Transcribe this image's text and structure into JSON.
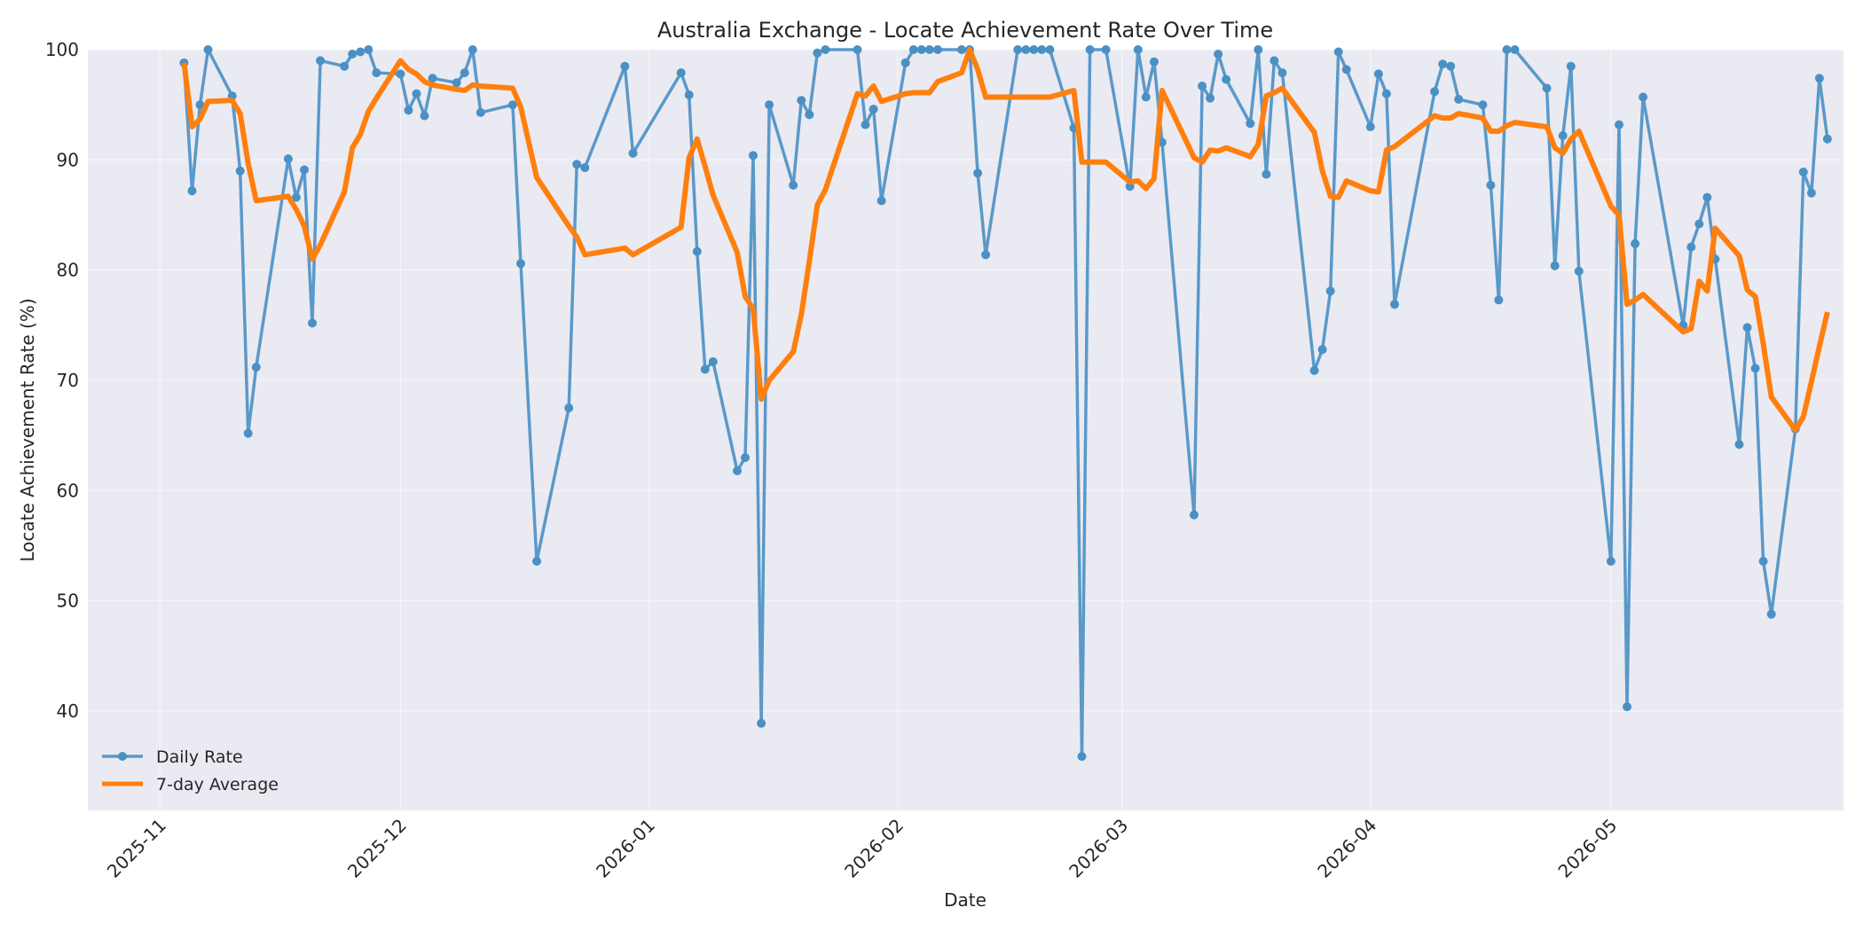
{
  "chart_data": {
    "type": "line",
    "title": "Australia Exchange - Locate Achievement Rate Over Time",
    "xlabel": "Date",
    "ylabel": "Locate Achievement Rate (%)",
    "xlim": [
      "2025-10-23",
      "2026-05-30"
    ],
    "ylim": [
      31,
      100
    ],
    "x_ticks": [
      "2025-11",
      "2025-12",
      "2026-01",
      "2026-02",
      "2026-03",
      "2026-04",
      "2026-05"
    ],
    "y_ticks": [
      40,
      50,
      60,
      70,
      80,
      90,
      100
    ],
    "grid": true,
    "legend": "lower-left",
    "series": [
      {
        "name": "Daily Rate",
        "style": "line-with-markers",
        "color": "#4a90c4",
        "points": [
          [
            "2025-11-04",
            98.8
          ],
          [
            "2025-11-05",
            87.2
          ],
          [
            "2025-11-06",
            95.0
          ],
          [
            "2025-11-07",
            100.0
          ],
          [
            "2025-11-10",
            95.8
          ],
          [
            "2025-11-11",
            89.0
          ],
          [
            "2025-11-12",
            65.2
          ],
          [
            "2025-11-13",
            71.2
          ],
          [
            "2025-11-17",
            90.1
          ],
          [
            "2025-11-18",
            86.6
          ],
          [
            "2025-11-19",
            89.1
          ],
          [
            "2025-11-20",
            75.2
          ],
          [
            "2025-11-21",
            99.0
          ],
          [
            "2025-11-24",
            98.5
          ],
          [
            "2025-11-25",
            99.6
          ],
          [
            "2025-11-26",
            99.8
          ],
          [
            "2025-11-27",
            100.0
          ],
          [
            "2025-11-28",
            97.9
          ],
          [
            "2025-12-01",
            97.8
          ],
          [
            "2025-12-02",
            94.5
          ],
          [
            "2025-12-03",
            96.0
          ],
          [
            "2025-12-04",
            94.0
          ],
          [
            "2025-12-05",
            97.4
          ],
          [
            "2025-12-08",
            97.0
          ],
          [
            "2025-12-09",
            97.9
          ],
          [
            "2025-12-10",
            100.0
          ],
          [
            "2025-12-11",
            94.3
          ],
          [
            "2025-12-15",
            95.0
          ],
          [
            "2025-12-16",
            80.6
          ],
          [
            "2025-12-18",
            53.6
          ],
          [
            "2025-12-22",
            67.5
          ],
          [
            "2025-12-23",
            89.6
          ],
          [
            "2025-12-24",
            89.3
          ],
          [
            "2025-12-29",
            98.5
          ],
          [
            "2025-12-30",
            90.6
          ],
          [
            "2026-01-05",
            97.9
          ],
          [
            "2026-01-06",
            95.9
          ],
          [
            "2026-01-07",
            81.7
          ],
          [
            "2026-01-08",
            71.0
          ],
          [
            "2026-01-09",
            71.7
          ],
          [
            "2026-01-12",
            61.8
          ],
          [
            "2026-01-13",
            63.0
          ],
          [
            "2026-01-14",
            90.4
          ],
          [
            "2026-01-15",
            38.9
          ],
          [
            "2026-01-16",
            95.0
          ],
          [
            "2026-01-19",
            87.7
          ],
          [
            "2026-01-20",
            95.4
          ],
          [
            "2026-01-21",
            94.1
          ],
          [
            "2026-01-22",
            99.7
          ],
          [
            "2026-01-23",
            100.0
          ],
          [
            "2026-01-27",
            100.0
          ],
          [
            "2026-01-28",
            93.2
          ],
          [
            "2026-01-29",
            94.6
          ],
          [
            "2026-01-30",
            86.3
          ],
          [
            "2026-02-02",
            98.8
          ],
          [
            "2026-02-03",
            100.0
          ],
          [
            "2026-02-04",
            100.0
          ],
          [
            "2026-02-05",
            100.0
          ],
          [
            "2026-02-06",
            100.0
          ],
          [
            "2026-02-09",
            100.0
          ],
          [
            "2026-02-10",
            100.0
          ],
          [
            "2026-02-11",
            88.8
          ],
          [
            "2026-02-12",
            81.4
          ],
          [
            "2026-02-16",
            100.0
          ],
          [
            "2026-02-17",
            100.0
          ],
          [
            "2026-02-18",
            100.0
          ],
          [
            "2026-02-19",
            100.0
          ],
          [
            "2026-02-20",
            100.0
          ],
          [
            "2026-02-23",
            92.9
          ],
          [
            "2026-02-24",
            35.9
          ],
          [
            "2026-02-25",
            100.0
          ],
          [
            "2026-02-27",
            100.0
          ],
          [
            "2026-03-02",
            87.6
          ],
          [
            "2026-03-03",
            100.0
          ],
          [
            "2026-03-04",
            95.7
          ],
          [
            "2026-03-05",
            98.9
          ],
          [
            "2026-03-06",
            91.6
          ],
          [
            "2026-03-10",
            57.8
          ],
          [
            "2026-03-11",
            96.7
          ],
          [
            "2026-03-12",
            95.6
          ],
          [
            "2026-03-13",
            99.6
          ],
          [
            "2026-03-14",
            97.3
          ],
          [
            "2026-03-17",
            93.3
          ],
          [
            "2026-03-18",
            100.0
          ],
          [
            "2026-03-19",
            88.7
          ],
          [
            "2026-03-20",
            99.0
          ],
          [
            "2026-03-21",
            97.9
          ],
          [
            "2026-03-25",
            70.9
          ],
          [
            "2026-03-26",
            72.8
          ],
          [
            "2026-03-27",
            78.1
          ],
          [
            "2026-03-28",
            99.8
          ],
          [
            "2026-03-29",
            98.2
          ],
          [
            "2026-04-01",
            93.0
          ],
          [
            "2026-04-02",
            97.8
          ],
          [
            "2026-04-03",
            96.0
          ],
          [
            "2026-04-04",
            76.9
          ],
          [
            "2026-04-09",
            96.2
          ],
          [
            "2026-04-10",
            98.7
          ],
          [
            "2026-04-11",
            98.5
          ],
          [
            "2026-04-12",
            95.5
          ],
          [
            "2026-04-15",
            95.0
          ],
          [
            "2026-04-16",
            87.7
          ],
          [
            "2026-04-17",
            77.3
          ],
          [
            "2026-04-18",
            100.0
          ],
          [
            "2026-04-19",
            100.0
          ],
          [
            "2026-04-23",
            96.5
          ],
          [
            "2026-04-24",
            80.4
          ],
          [
            "2026-04-25",
            92.2
          ],
          [
            "2026-04-26",
            98.5
          ],
          [
            "2026-04-27",
            79.9
          ],
          [
            "2026-05-01",
            53.6
          ],
          [
            "2026-05-02",
            93.2
          ],
          [
            "2026-05-03",
            40.4
          ],
          [
            "2026-05-04",
            82.4
          ],
          [
            "2026-05-05",
            95.7
          ],
          [
            "2026-05-10",
            75.0
          ],
          [
            "2026-05-11",
            82.1
          ],
          [
            "2026-05-12",
            84.2
          ],
          [
            "2026-05-13",
            86.6
          ],
          [
            "2026-05-14",
            81.0
          ],
          [
            "2026-05-17",
            64.2
          ],
          [
            "2026-05-18",
            74.8
          ],
          [
            "2026-05-19",
            71.1
          ],
          [
            "2026-05-20",
            53.6
          ],
          [
            "2026-05-21",
            48.8
          ],
          [
            "2026-05-24",
            65.6
          ],
          [
            "2026-05-25",
            88.9
          ],
          [
            "2026-05-26",
            87.0
          ],
          [
            "2026-05-27",
            97.4
          ],
          [
            "2026-05-28",
            91.9
          ]
        ]
      },
      {
        "name": "7-day Average",
        "style": "line",
        "color": "#ff7f0e",
        "points": [
          [
            "2025-11-04",
            98.8
          ],
          [
            "2025-11-05",
            93.0
          ],
          [
            "2025-11-06",
            93.7
          ],
          [
            "2025-11-07",
            95.3
          ],
          [
            "2025-11-10",
            95.4
          ],
          [
            "2025-11-11",
            94.2
          ],
          [
            "2025-11-12",
            89.7
          ],
          [
            "2025-11-13",
            86.3
          ],
          [
            "2025-11-17",
            86.7
          ],
          [
            "2025-11-18",
            85.5
          ],
          [
            "2025-11-19",
            84.0
          ],
          [
            "2025-11-20",
            81.0
          ],
          [
            "2025-11-21",
            82.3
          ],
          [
            "2025-11-24",
            87.1
          ],
          [
            "2025-11-25",
            91.1
          ],
          [
            "2025-11-26",
            92.3
          ],
          [
            "2025-11-27",
            94.4
          ],
          [
            "2025-11-28",
            95.6
          ],
          [
            "2025-12-01",
            99.0
          ],
          [
            "2025-12-02",
            98.2
          ],
          [
            "2025-12-03",
            97.8
          ],
          [
            "2025-12-04",
            97.1
          ],
          [
            "2025-12-05",
            96.8
          ],
          [
            "2025-12-08",
            96.4
          ],
          [
            "2025-12-09",
            96.3
          ],
          [
            "2025-12-10",
            96.8
          ],
          [
            "2025-12-11",
            96.7
          ],
          [
            "2025-12-15",
            96.5
          ],
          [
            "2025-12-16",
            94.8
          ],
          [
            "2025-12-18",
            88.4
          ],
          [
            "2025-12-22",
            84.0
          ],
          [
            "2025-12-23",
            83.0
          ],
          [
            "2025-12-24",
            81.4
          ],
          [
            "2025-12-29",
            82.0
          ],
          [
            "2025-12-30",
            81.4
          ],
          [
            "2026-01-05",
            83.9
          ],
          [
            "2026-01-06",
            90.2
          ],
          [
            "2026-01-07",
            91.9
          ],
          [
            "2026-01-08",
            89.4
          ],
          [
            "2026-01-09",
            86.8
          ],
          [
            "2026-01-12",
            81.6
          ],
          [
            "2026-01-13",
            77.6
          ],
          [
            "2026-01-14",
            76.5
          ],
          [
            "2026-01-15",
            68.3
          ],
          [
            "2026-01-16",
            70.0
          ],
          [
            "2026-01-19",
            72.6
          ],
          [
            "2026-01-20",
            76.0
          ],
          [
            "2026-01-21",
            80.8
          ],
          [
            "2026-01-22",
            85.9
          ],
          [
            "2026-01-23",
            87.3
          ],
          [
            "2026-01-27",
            96.0
          ],
          [
            "2026-01-28",
            95.8
          ],
          [
            "2026-01-29",
            96.7
          ],
          [
            "2026-01-30",
            95.3
          ],
          [
            "2026-02-02",
            96.0
          ],
          [
            "2026-02-03",
            96.1
          ],
          [
            "2026-02-04",
            96.1
          ],
          [
            "2026-02-05",
            96.1
          ],
          [
            "2026-02-06",
            97.1
          ],
          [
            "2026-02-09",
            97.9
          ],
          [
            "2026-02-10",
            100.0
          ],
          [
            "2026-02-11",
            98.2
          ],
          [
            "2026-02-12",
            95.7
          ],
          [
            "2026-02-16",
            95.7
          ],
          [
            "2026-02-17",
            95.7
          ],
          [
            "2026-02-18",
            95.7
          ],
          [
            "2026-02-19",
            95.7
          ],
          [
            "2026-02-20",
            95.7
          ],
          [
            "2026-02-23",
            96.3
          ],
          [
            "2026-02-24",
            89.8
          ],
          [
            "2026-02-25",
            89.8
          ],
          [
            "2026-02-27",
            89.8
          ],
          [
            "2026-03-02",
            88.0
          ],
          [
            "2026-03-03",
            88.1
          ],
          [
            "2026-03-04",
            87.4
          ],
          [
            "2026-03-05",
            88.3
          ],
          [
            "2026-03-06",
            96.3
          ],
          [
            "2026-03-10",
            90.2
          ],
          [
            "2026-03-11",
            89.8
          ],
          [
            "2026-03-12",
            90.9
          ],
          [
            "2026-03-13",
            90.8
          ],
          [
            "2026-03-14",
            91.1
          ],
          [
            "2026-03-17",
            90.3
          ],
          [
            "2026-03-18",
            91.4
          ],
          [
            "2026-03-19",
            95.8
          ],
          [
            "2026-03-20",
            96.1
          ],
          [
            "2026-03-21",
            96.5
          ],
          [
            "2026-03-25",
            92.5
          ],
          [
            "2026-03-26",
            89.0
          ],
          [
            "2026-03-27",
            86.7
          ],
          [
            "2026-03-28",
            86.6
          ],
          [
            "2026-03-29",
            88.1
          ],
          [
            "2026-04-01",
            87.2
          ],
          [
            "2026-04-02",
            87.1
          ],
          [
            "2026-04-03",
            90.9
          ],
          [
            "2026-04-04",
            91.2
          ],
          [
            "2026-04-09",
            94.0
          ],
          [
            "2026-04-10",
            93.8
          ],
          [
            "2026-04-11",
            93.8
          ],
          [
            "2026-04-12",
            94.2
          ],
          [
            "2026-04-15",
            93.8
          ],
          [
            "2026-04-16",
            92.6
          ],
          [
            "2026-04-17",
            92.6
          ],
          [
            "2026-04-18",
            93.1
          ],
          [
            "2026-04-19",
            93.4
          ],
          [
            "2026-04-23",
            93.0
          ],
          [
            "2026-04-24",
            91.1
          ],
          [
            "2026-04-25",
            90.6
          ],
          [
            "2026-04-26",
            91.9
          ],
          [
            "2026-04-27",
            92.6
          ],
          [
            "2026-05-01",
            85.8
          ],
          [
            "2026-05-02",
            85.0
          ],
          [
            "2026-05-03",
            76.9
          ],
          [
            "2026-05-04",
            77.3
          ],
          [
            "2026-05-05",
            77.8
          ],
          [
            "2026-05-10",
            74.4
          ],
          [
            "2026-05-11",
            74.7
          ],
          [
            "2026-05-12",
            79.0
          ],
          [
            "2026-05-13",
            78.1
          ],
          [
            "2026-05-14",
            83.8
          ],
          [
            "2026-05-17",
            81.3
          ],
          [
            "2026-05-18",
            78.2
          ],
          [
            "2026-05-19",
            77.6
          ],
          [
            "2026-05-20",
            73.3
          ],
          [
            "2026-05-21",
            68.5
          ],
          [
            "2026-05-24",
            65.5
          ],
          [
            "2026-05-25",
            66.7
          ],
          [
            "2026-05-26",
            69.9
          ],
          [
            "2026-05-27",
            73.1
          ],
          [
            "2026-05-28",
            76.2
          ]
        ]
      }
    ]
  }
}
